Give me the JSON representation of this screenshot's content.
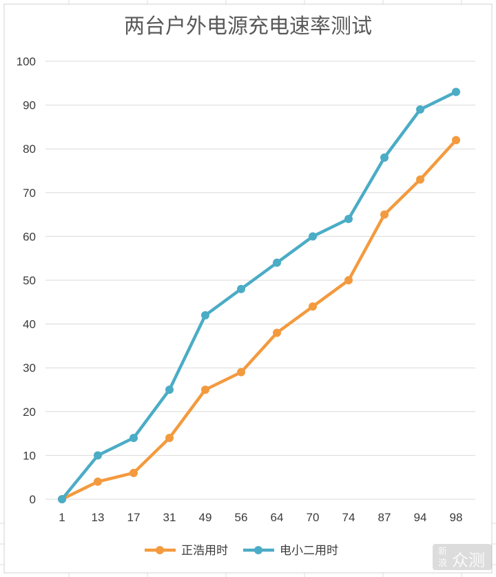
{
  "chart_data": {
    "type": "line",
    "title": "两台户外电源充电速率测试",
    "xlabel": "",
    "ylabel": "",
    "categories": [
      "1",
      "13",
      "17",
      "31",
      "49",
      "56",
      "64",
      "70",
      "74",
      "87",
      "94",
      "98"
    ],
    "ylim": [
      0,
      100
    ],
    "yticks": [
      "0",
      "10",
      "20",
      "30",
      "40",
      "50",
      "60",
      "70",
      "80",
      "90",
      "100"
    ],
    "grid": true,
    "legend_position": "bottom",
    "series": [
      {
        "name": "正浩用时",
        "color": "#f39a3e",
        "values": [
          0,
          4,
          6,
          14,
          25,
          29,
          38,
          44,
          50,
          65,
          73,
          82
        ]
      },
      {
        "name": "电小二用时",
        "color": "#4bacc6",
        "values": [
          0,
          10,
          14,
          25,
          42,
          48,
          54,
          60,
          64,
          78,
          89,
          93
        ]
      }
    ]
  },
  "watermark": {
    "brand": "众测",
    "site_top": "新",
    "site_bottom": "浪"
  }
}
